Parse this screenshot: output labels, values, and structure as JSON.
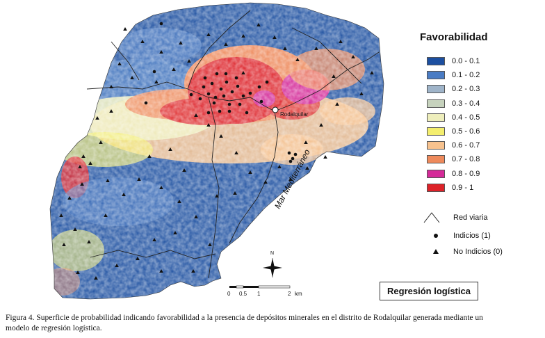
{
  "legend": {
    "title": "Favorabilidad",
    "classes": [
      {
        "label": "0.0 - 0.1",
        "color": "#1c4fa0"
      },
      {
        "label": "0.1 - 0.2",
        "color": "#4a7cc4"
      },
      {
        "label": "0.2 - 0.3",
        "color": "#9fb4c9"
      },
      {
        "label": "0.3 - 0.4",
        "color": "#c6d2bd"
      },
      {
        "label": "0.4 - 0.5",
        "color": "#eeeebc"
      },
      {
        "label": "0.5 - 0.6",
        "color": "#f4ee6e"
      },
      {
        "label": "0.6 - 0.7",
        "color": "#f7c28e"
      },
      {
        "label": "0.7 - 0.8",
        "color": "#ee8a5c"
      },
      {
        "label": "0.8 - 0.9",
        "color": "#d42a98"
      },
      {
        "label": "0.9 - 1",
        "color": "#dd2229"
      }
    ]
  },
  "symbols": {
    "road_label": "Red viaria",
    "indicios_label": "Indicios (1)",
    "no_indicios_label": "No Indicios (0)"
  },
  "map": {
    "town": "Rodalquilar",
    "sea": "Mar Mediterráneo",
    "north": "N"
  },
  "scale_bar": {
    "ticks": [
      "0",
      "0.5",
      "1",
      "2"
    ],
    "unit": "km"
  },
  "method_box": "Regresión logística",
  "caption": {
    "line1": "Figura 4. Superficie de probabilidad indicando favorabilidad a la presencia de depósitos minerales en el distrito de Rodalquilar generada mediante un",
    "line2": "modelo de regresión logística."
  }
}
